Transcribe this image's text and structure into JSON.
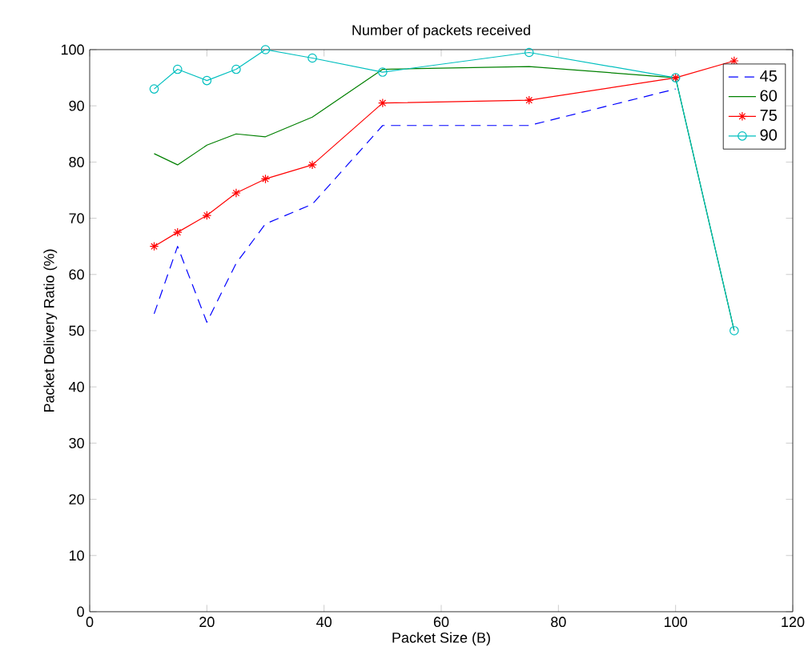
{
  "chart_data": {
    "type": "line",
    "title": "Number of packets received",
    "xlabel": "Packet Size (B)",
    "ylabel": "Packet Delivery Ratio (%)",
    "x": [
      11,
      15,
      20,
      25,
      30,
      38,
      50,
      75,
      100,
      110
    ],
    "series": [
      {
        "name": "45",
        "color": "#0000ff",
        "line_style": "dashed",
        "marker": "none",
        "values": [
          53,
          65,
          51.5,
          62,
          69,
          72.5,
          86.5,
          86.5,
          93,
          null
        ]
      },
      {
        "name": "60",
        "color": "#008000",
        "line_style": "solid",
        "marker": "none",
        "values": [
          81.5,
          79.5,
          83,
          85,
          84.5,
          88,
          96.5,
          97,
          95,
          50
        ]
      },
      {
        "name": "75",
        "color": "#ff0000",
        "line_style": "solid",
        "marker": "cross",
        "values": [
          65,
          67.5,
          70.5,
          74.5,
          77,
          79.5,
          90.5,
          91,
          95,
          98
        ]
      },
      {
        "name": "90",
        "color": "#00bfbf",
        "line_style": "solid",
        "marker": "circle",
        "values": [
          93,
          96.5,
          94.5,
          96.5,
          100,
          98.5,
          96,
          99.5,
          95,
          50
        ]
      }
    ],
    "xlim": [
      0,
      120
    ],
    "ylim": [
      0,
      100
    ],
    "xticks": [
      0,
      20,
      40,
      60,
      80,
      100,
      120
    ],
    "yticks": [
      0,
      10,
      20,
      30,
      40,
      50,
      60,
      70,
      80,
      90,
      100
    ],
    "grid": false,
    "legend": "top right"
  }
}
